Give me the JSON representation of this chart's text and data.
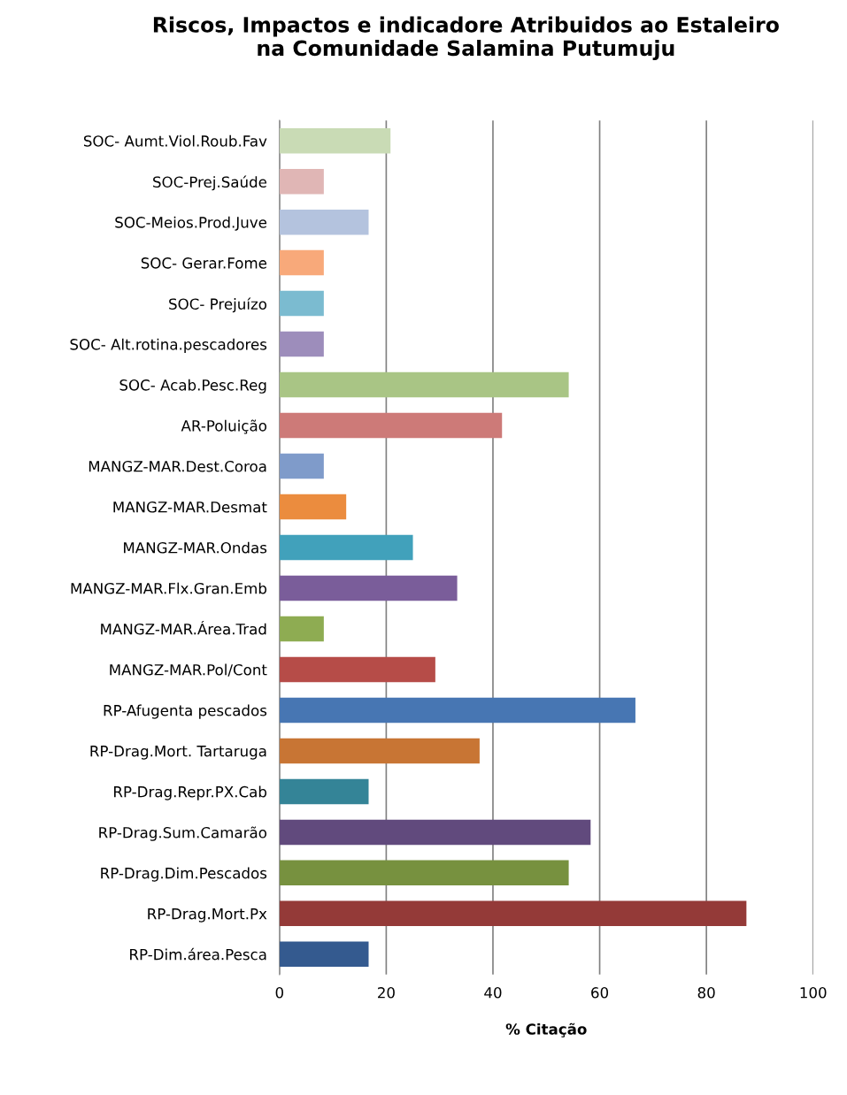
{
  "chart_data": {
    "type": "bar",
    "orientation": "horizontal",
    "title": "Riscos, Impactos e indicadore Atribuidos ao Estaleiro\nna Comunidade Salamina Putumuju",
    "xlabel": "% Citação",
    "categories": [
      "SOC- Aumt.Viol.Roub.Fav",
      "SOC-Prej.Saúde",
      "SOC-Meios.Prod.Juve",
      "SOC- Gerar.Fome",
      "SOC- Prejuízo",
      "SOC- Alt.rotina.pescadores",
      "SOC- Acab.Pesc.Reg",
      "AR-Poluição",
      "MANGZ-MAR.Dest.Coroa",
      "MANGZ-MAR.Desmat",
      "MANGZ-MAR.Ondas",
      "MANGZ-MAR.Flx.Gran.Emb",
      "MANGZ-MAR.Área.Trad",
      "MANGZ-MAR.Pol/Cont",
      "RP-Afugenta pescados",
      "RP-Drag.Mort. Tartaruga",
      "RP-Drag.Repr.PX.Cab",
      "RP-Drag.Sum.Camarão",
      "RP-Drag.Dim.Pescados",
      "RP-Drag.Mort.Px",
      "RP-Dim.área.Pesca"
    ],
    "values": [
      20.8,
      8.3,
      16.7,
      8.3,
      8.3,
      8.3,
      54.2,
      41.7,
      8.3,
      12.5,
      25,
      33.3,
      8.3,
      29.2,
      66.7,
      37.5,
      16.7,
      58.3,
      54.2,
      87.5,
      16.7
    ],
    "colors": [
      "#c9dbb5",
      "#e0b6b5",
      "#b4c3de",
      "#f8a97a",
      "#7bbbd0",
      "#9d8dbb",
      "#a9c585",
      "#cd7a78",
      "#7f9bca",
      "#eb8c3e",
      "#41a1bb",
      "#7a5d9a",
      "#8eac52",
      "#b64c48",
      "#4776b3",
      "#c87534",
      "#348497",
      "#614a7d",
      "#77913f",
      "#943a38",
      "#345a8f"
    ],
    "xlim": [
      0,
      100
    ],
    "xticks": [
      0,
      20,
      40,
      60,
      80,
      100
    ],
    "grid": "x",
    "legend": false
  }
}
